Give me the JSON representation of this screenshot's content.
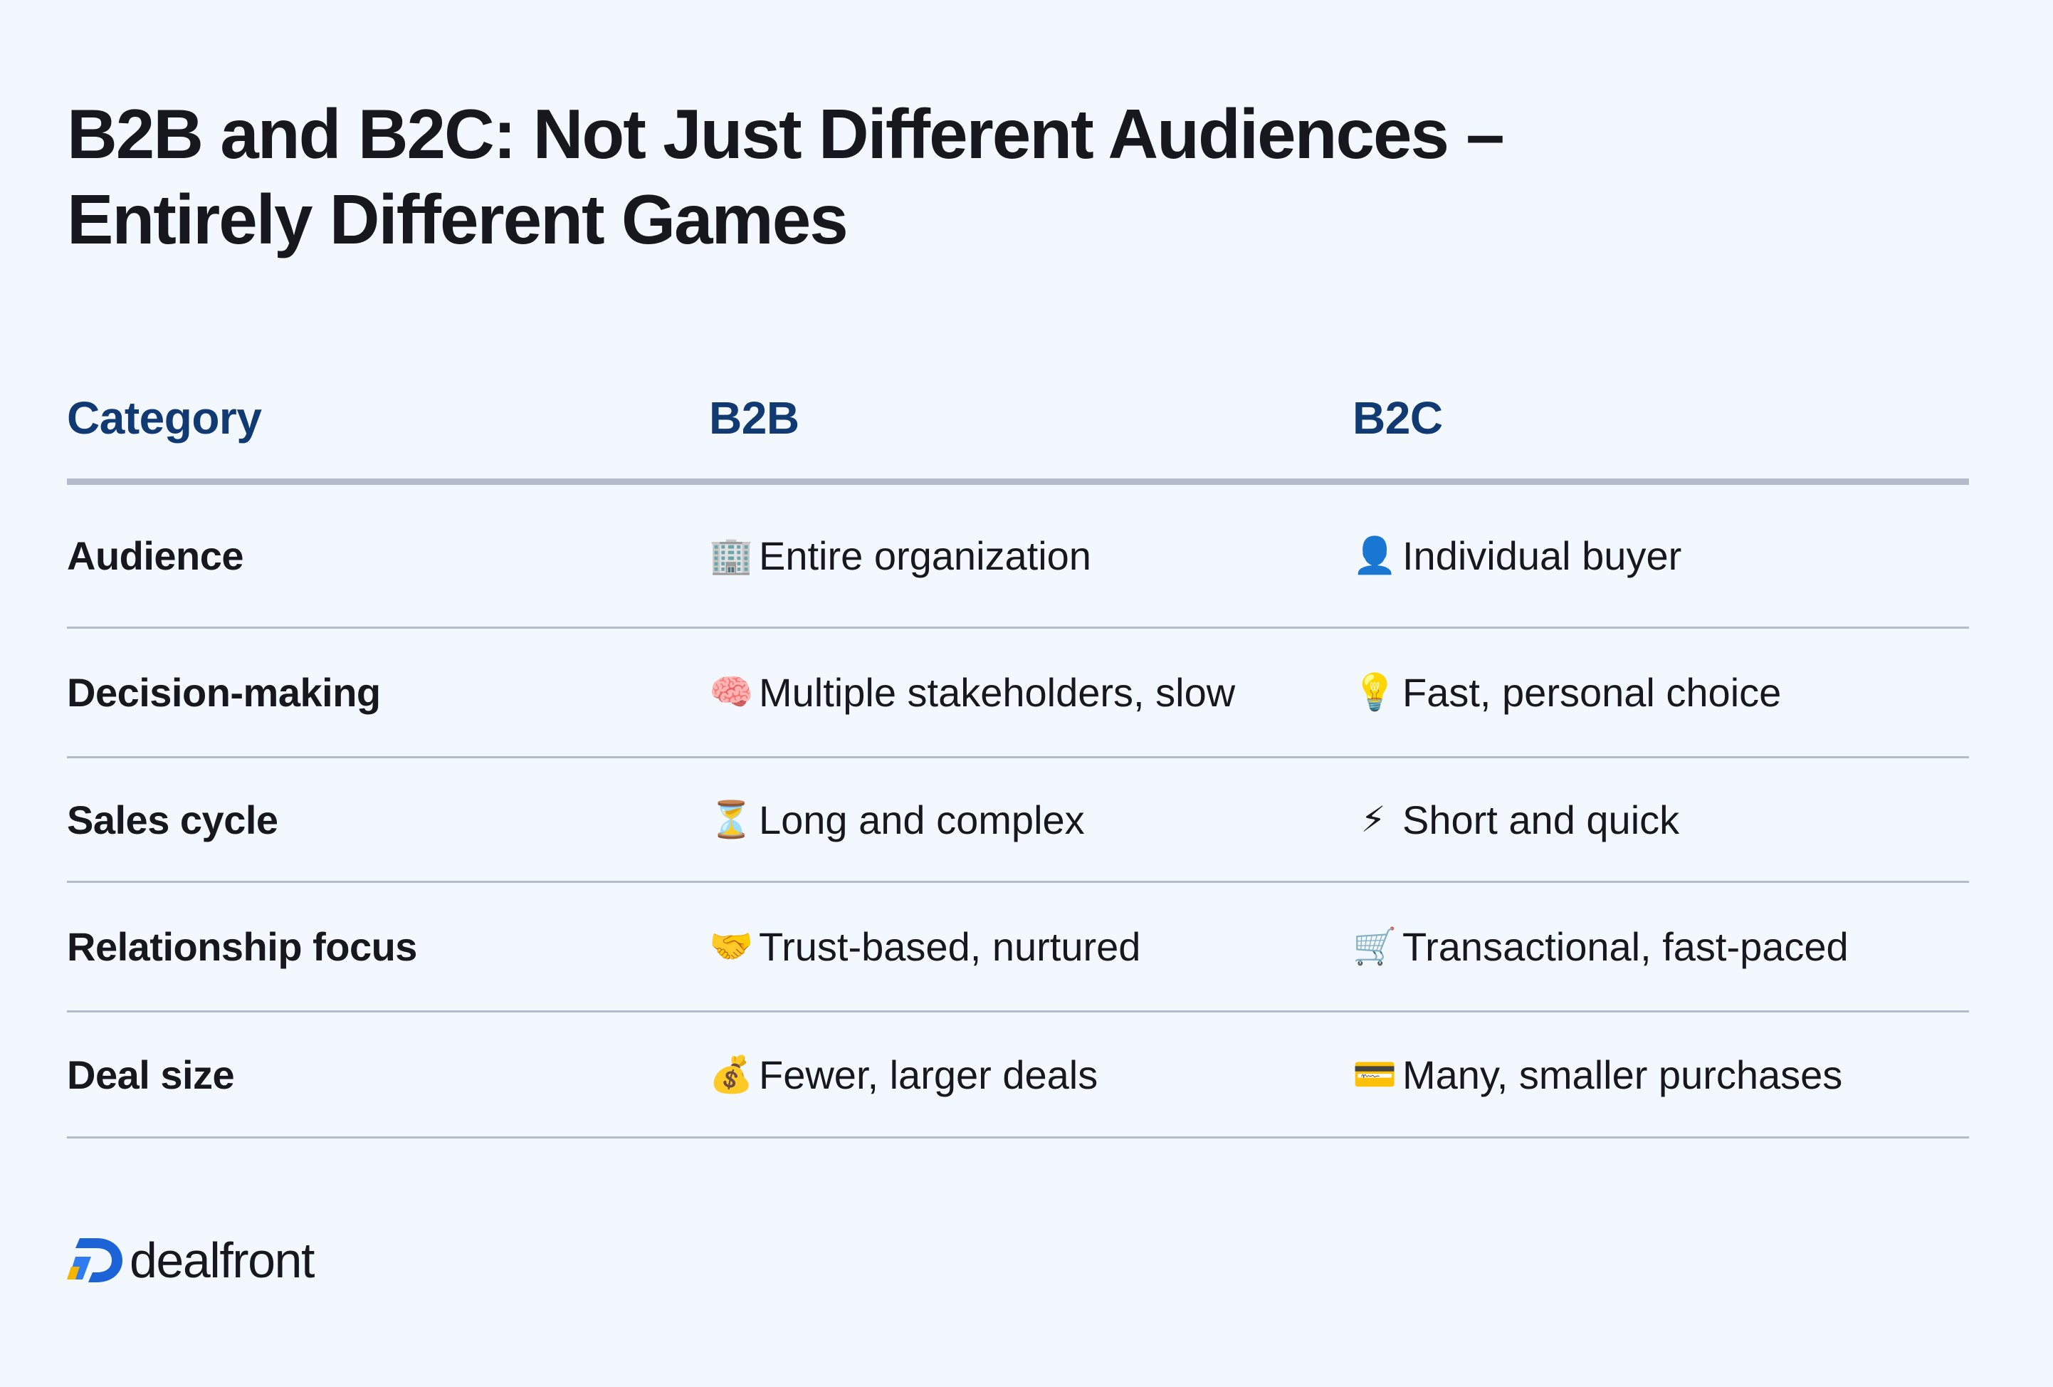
{
  "title_line1": "B2B and B2C: Not Just Different Audiences –",
  "title_line2": "Entirely Different Games",
  "table": {
    "headers": [
      "Category",
      "B2B",
      "B2C"
    ],
    "rows": [
      {
        "category": "Audience",
        "b2b_icon": "🏢",
        "b2b": "Entire organization",
        "b2c_icon": "👤",
        "b2c": "Individual buyer"
      },
      {
        "category": "Decision-making",
        "b2b_icon": "🧠",
        "b2b": "Multiple stakeholders, slow",
        "b2c_icon": "💡",
        "b2c": "Fast, personal choice"
      },
      {
        "category": "Sales cycle",
        "b2b_icon": "⏳",
        "b2b": "Long and complex",
        "b2c_icon": "⚡",
        "b2c": "Short and quick"
      },
      {
        "category": "Relationship focus",
        "b2b_icon": "🤝",
        "b2b": "Trust-based, nurtured",
        "b2c_icon": "🛒",
        "b2c": "Transactional, fast-paced"
      },
      {
        "category": "Deal size",
        "b2b_icon": "💰",
        "b2b": "Fewer, larger deals",
        "b2c_icon": "💳",
        "b2c": "Many, smaller purchases"
      }
    ]
  },
  "brand": {
    "name": "dealfront",
    "colors": {
      "blue": "#1d63d8",
      "yellow": "#f5b400",
      "heading": "#123a72",
      "background": "#f2f8fe"
    }
  }
}
